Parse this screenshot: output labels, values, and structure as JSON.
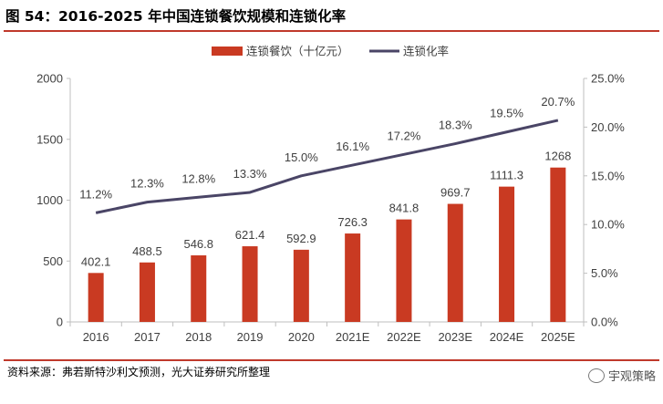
{
  "header": {
    "title": "图 54：2016-2025 年中国连锁餐饮规模和连锁化率"
  },
  "footer": {
    "source": "资料来源：弗若斯特沙利文预测，光大证券研究所整理",
    "watermark": "宇观策略"
  },
  "colors": {
    "bar": "#c93a22",
    "line": "#4a4566",
    "accent": "#c0392b",
    "axis": "#bfbfbf",
    "text": "#404040"
  },
  "chart_data": {
    "type": "bar",
    "categories": [
      "2016",
      "2017",
      "2018",
      "2019",
      "2020",
      "2021E",
      "2022E",
      "2023E",
      "2024E",
      "2025E"
    ],
    "series": [
      {
        "name": "连锁餐饮（十亿元）",
        "type": "bar",
        "axis": "left",
        "values": [
          402.1,
          488.5,
          546.8,
          621.4,
          592.9,
          726.3,
          841.8,
          969.7,
          1111.3,
          1268
        ],
        "labels": [
          "402.1",
          "488.5",
          "546.8",
          "621.4",
          "592.9",
          "726.3",
          "841.8",
          "969.7",
          "1111.3",
          "1268"
        ]
      },
      {
        "name": "连锁化率",
        "type": "line",
        "axis": "right",
        "values": [
          11.2,
          12.3,
          12.8,
          13.3,
          15.0,
          16.1,
          17.2,
          18.3,
          19.5,
          20.7
        ],
        "labels": [
          "11.2%",
          "12.3%",
          "12.8%",
          "13.3%",
          "15.0%",
          "16.1%",
          "17.2%",
          "18.3%",
          "19.5%",
          "20.7%"
        ]
      }
    ],
    "y_left": {
      "range": [
        0,
        2000
      ],
      "ticks": [
        "0",
        "500",
        "1000",
        "1500",
        "2000"
      ]
    },
    "y_right": {
      "range": [
        0,
        25
      ],
      "ticks": [
        "0.0%",
        "5.0%",
        "10.0%",
        "15.0%",
        "20.0%",
        "25.0%"
      ]
    },
    "legend": "top-center",
    "grid": false
  }
}
